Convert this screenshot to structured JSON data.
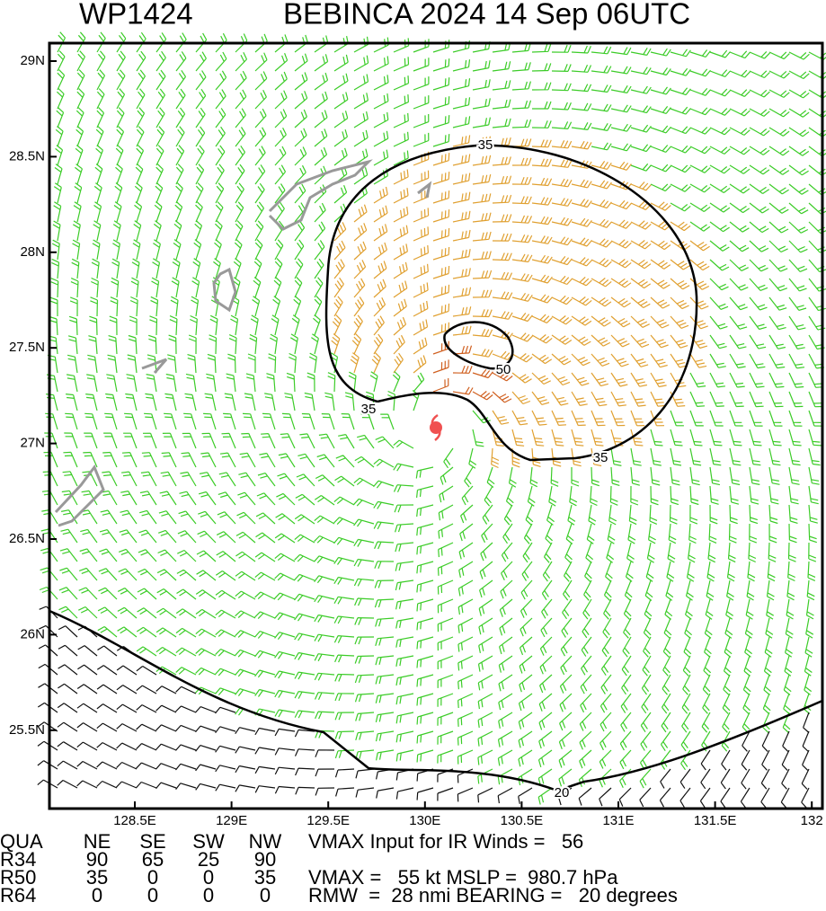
{
  "header": {
    "storm_id": "WP1424",
    "title": "BEBINCA 2024 14 Sep 06UTC"
  },
  "map": {
    "lat_labels": [
      "29N",
      "28.5N",
      "28N",
      "27.5N",
      "27N",
      "26.5N",
      "26N",
      "25.5N"
    ],
    "lon_labels": [
      "128.5E",
      "129E",
      "129.5E",
      "130E",
      "130.5E",
      "131E",
      "131.5E",
      "132"
    ],
    "contour_labels": [
      "35",
      "35",
      "35",
      "50",
      "20"
    ]
  },
  "table": {
    "rows": [
      [
        "QUA",
        "NE",
        "SE",
        "SW",
        "NW"
      ],
      [
        "R34",
        "90",
        "65",
        "25",
        "90"
      ],
      [
        "R50",
        "35",
        "0",
        "0",
        "35"
      ],
      [
        "R64",
        "0",
        "0",
        "0",
        "0"
      ]
    ],
    "notes": [
      "VMAX Input for IR Winds =   56",
      "VMAX =   55 kt MSLP =  980.7 hPa",
      "RMW  =  28 nmi BEARING =   20 degrees"
    ]
  }
}
